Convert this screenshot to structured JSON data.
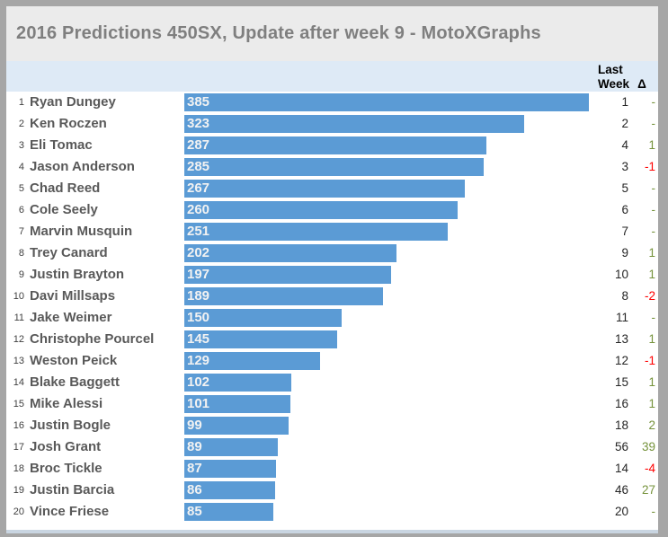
{
  "title": "2016 Predictions 450SX, Update after week 9 - MotoXGraphs",
  "columns": {
    "last_week_line1": "Last",
    "last_week_line2": "Week",
    "delta": "Δ"
  },
  "colors": {
    "bar": "#5B9BD5",
    "positive": "#76933C",
    "negative": "#FF0000",
    "header_band_bg": "#DEEAF6",
    "title_bg": "#EBEBEB",
    "frame": "#A6A6A6"
  },
  "chart_data": {
    "type": "bar",
    "orientation": "horizontal",
    "title": "2016 Predictions 450SX, Update after week 9 - MotoXGraphs",
    "value_axis_max": 385,
    "riders": [
      {
        "rank": 1,
        "name": "Ryan Dungey",
        "points": 385,
        "last_week": 1,
        "delta": "-"
      },
      {
        "rank": 2,
        "name": "Ken Roczen",
        "points": 323,
        "last_week": 2,
        "delta": "-"
      },
      {
        "rank": 3,
        "name": "Eli Tomac",
        "points": 287,
        "last_week": 4,
        "delta": "1"
      },
      {
        "rank": 4,
        "name": "Jason Anderson",
        "points": 285,
        "last_week": 3,
        "delta": "-1"
      },
      {
        "rank": 5,
        "name": "Chad Reed",
        "points": 267,
        "last_week": 5,
        "delta": "-"
      },
      {
        "rank": 6,
        "name": "Cole Seely",
        "points": 260,
        "last_week": 6,
        "delta": "-"
      },
      {
        "rank": 7,
        "name": "Marvin Musquin",
        "points": 251,
        "last_week": 7,
        "delta": "-"
      },
      {
        "rank": 8,
        "name": "Trey Canard",
        "points": 202,
        "last_week": 9,
        "delta": "1"
      },
      {
        "rank": 9,
        "name": "Justin Brayton",
        "points": 197,
        "last_week": 10,
        "delta": "1"
      },
      {
        "rank": 10,
        "name": "Davi Millsaps",
        "points": 189,
        "last_week": 8,
        "delta": "-2"
      },
      {
        "rank": 11,
        "name": "Jake Weimer",
        "points": 150,
        "last_week": 11,
        "delta": "-"
      },
      {
        "rank": 12,
        "name": "Christophe Pourcel",
        "points": 145,
        "last_week": 13,
        "delta": "1"
      },
      {
        "rank": 13,
        "name": "Weston Peick",
        "points": 129,
        "last_week": 12,
        "delta": "-1"
      },
      {
        "rank": 14,
        "name": "Blake Baggett",
        "points": 102,
        "last_week": 15,
        "delta": "1"
      },
      {
        "rank": 15,
        "name": "Mike Alessi",
        "points": 101,
        "last_week": 16,
        "delta": "1"
      },
      {
        "rank": 16,
        "name": "Justin Bogle",
        "points": 99,
        "last_week": 18,
        "delta": "2"
      },
      {
        "rank": 17,
        "name": "Josh Grant",
        "points": 89,
        "last_week": 56,
        "delta": "39"
      },
      {
        "rank": 18,
        "name": "Broc Tickle",
        "points": 87,
        "last_week": 14,
        "delta": "-4"
      },
      {
        "rank": 19,
        "name": "Justin Barcia",
        "points": 86,
        "last_week": 46,
        "delta": "27"
      },
      {
        "rank": 20,
        "name": "Vince Friese",
        "points": 85,
        "last_week": 20,
        "delta": "-"
      }
    ]
  }
}
